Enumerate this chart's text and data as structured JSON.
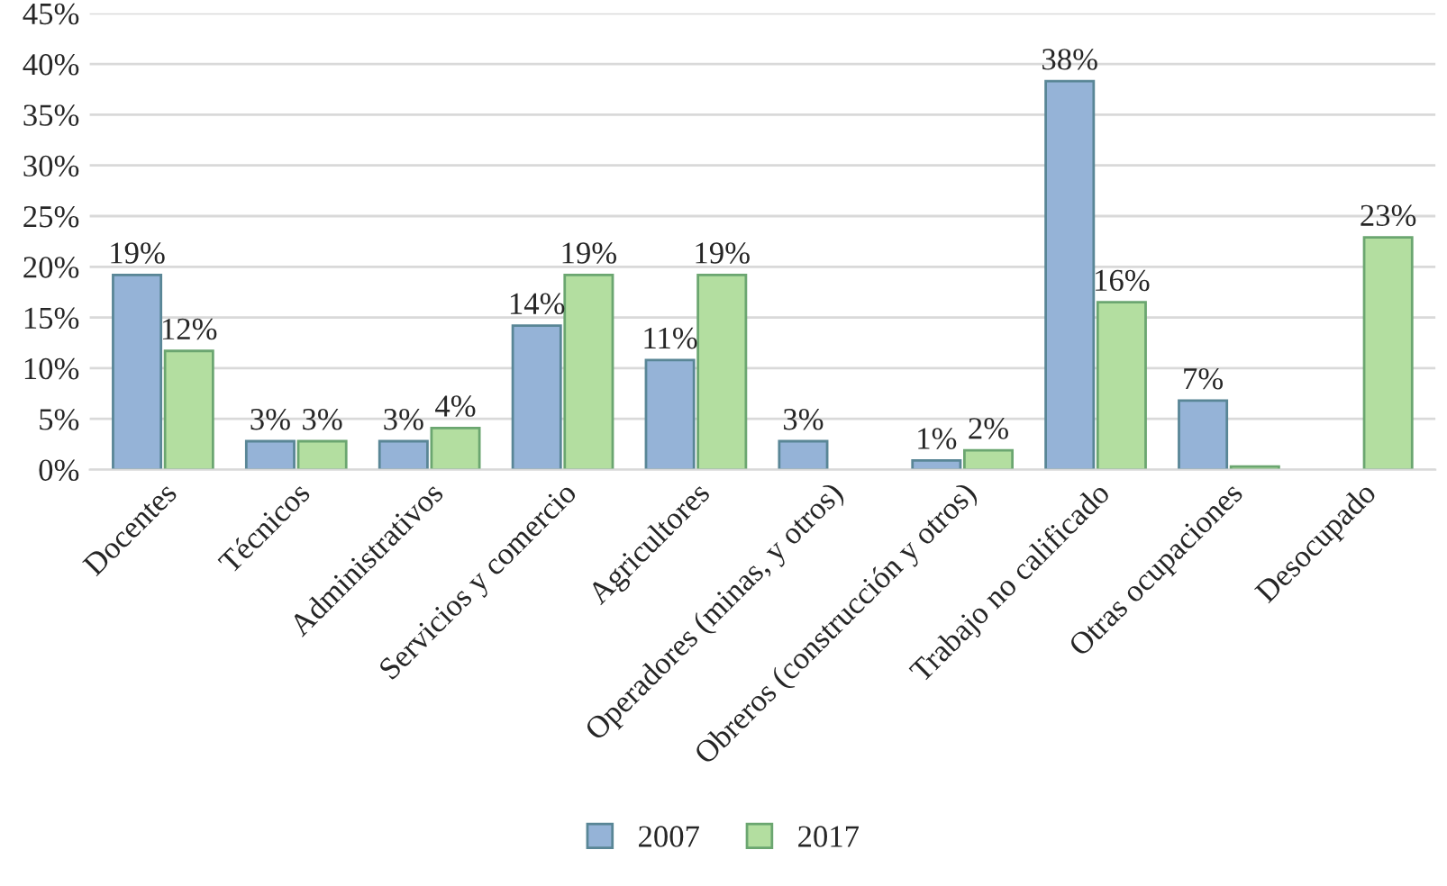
{
  "chart_data": {
    "type": "bar",
    "categories": [
      "Docentes",
      "Técnicos",
      "Administrativos",
      "Servicios y comercio",
      "Agricultores",
      "Operadores (minas, y otros)",
      "Obreros (construcción y otros)",
      "Trabajo no calificado",
      "Otras ocupaciones",
      "Desocupado"
    ],
    "series": [
      {
        "name": "2007",
        "color": "#95b3d7",
        "values": [
          19.2,
          2.8,
          2.8,
          14.2,
          10.8,
          2.8,
          0.9,
          38.3,
          6.8,
          null
        ],
        "value_labels": [
          "19%",
          "3%",
          "3%",
          "14%",
          "11%",
          "3%",
          "1%",
          "38%",
          "7%",
          null
        ]
      },
      {
        "name": "2017",
        "color": "#b3dea0",
        "values": [
          11.7,
          2.8,
          4.1,
          19.2,
          19.2,
          null,
          1.9,
          16.5,
          0.3,
          22.9
        ],
        "value_labels": [
          "12%",
          "3%",
          "4%",
          "19%",
          "19%",
          null,
          "2%",
          "16%",
          null,
          "23%"
        ]
      }
    ],
    "ylim": [
      0,
      45
    ],
    "yticks": [
      {
        "value": 0,
        "label": "0%"
      },
      {
        "value": 5,
        "label": "5%"
      },
      {
        "value": 10,
        "label": "10%"
      },
      {
        "value": 15,
        "label": "15%"
      },
      {
        "value": 20,
        "label": "20%"
      },
      {
        "value": 25,
        "label": "25%"
      },
      {
        "value": 30,
        "label": "30%"
      },
      {
        "value": 35,
        "label": "35%"
      },
      {
        "value": 40,
        "label": "40%"
      },
      {
        "value": 45,
        "label": "45%"
      }
    ],
    "grid": "y",
    "legend": "bottom"
  }
}
